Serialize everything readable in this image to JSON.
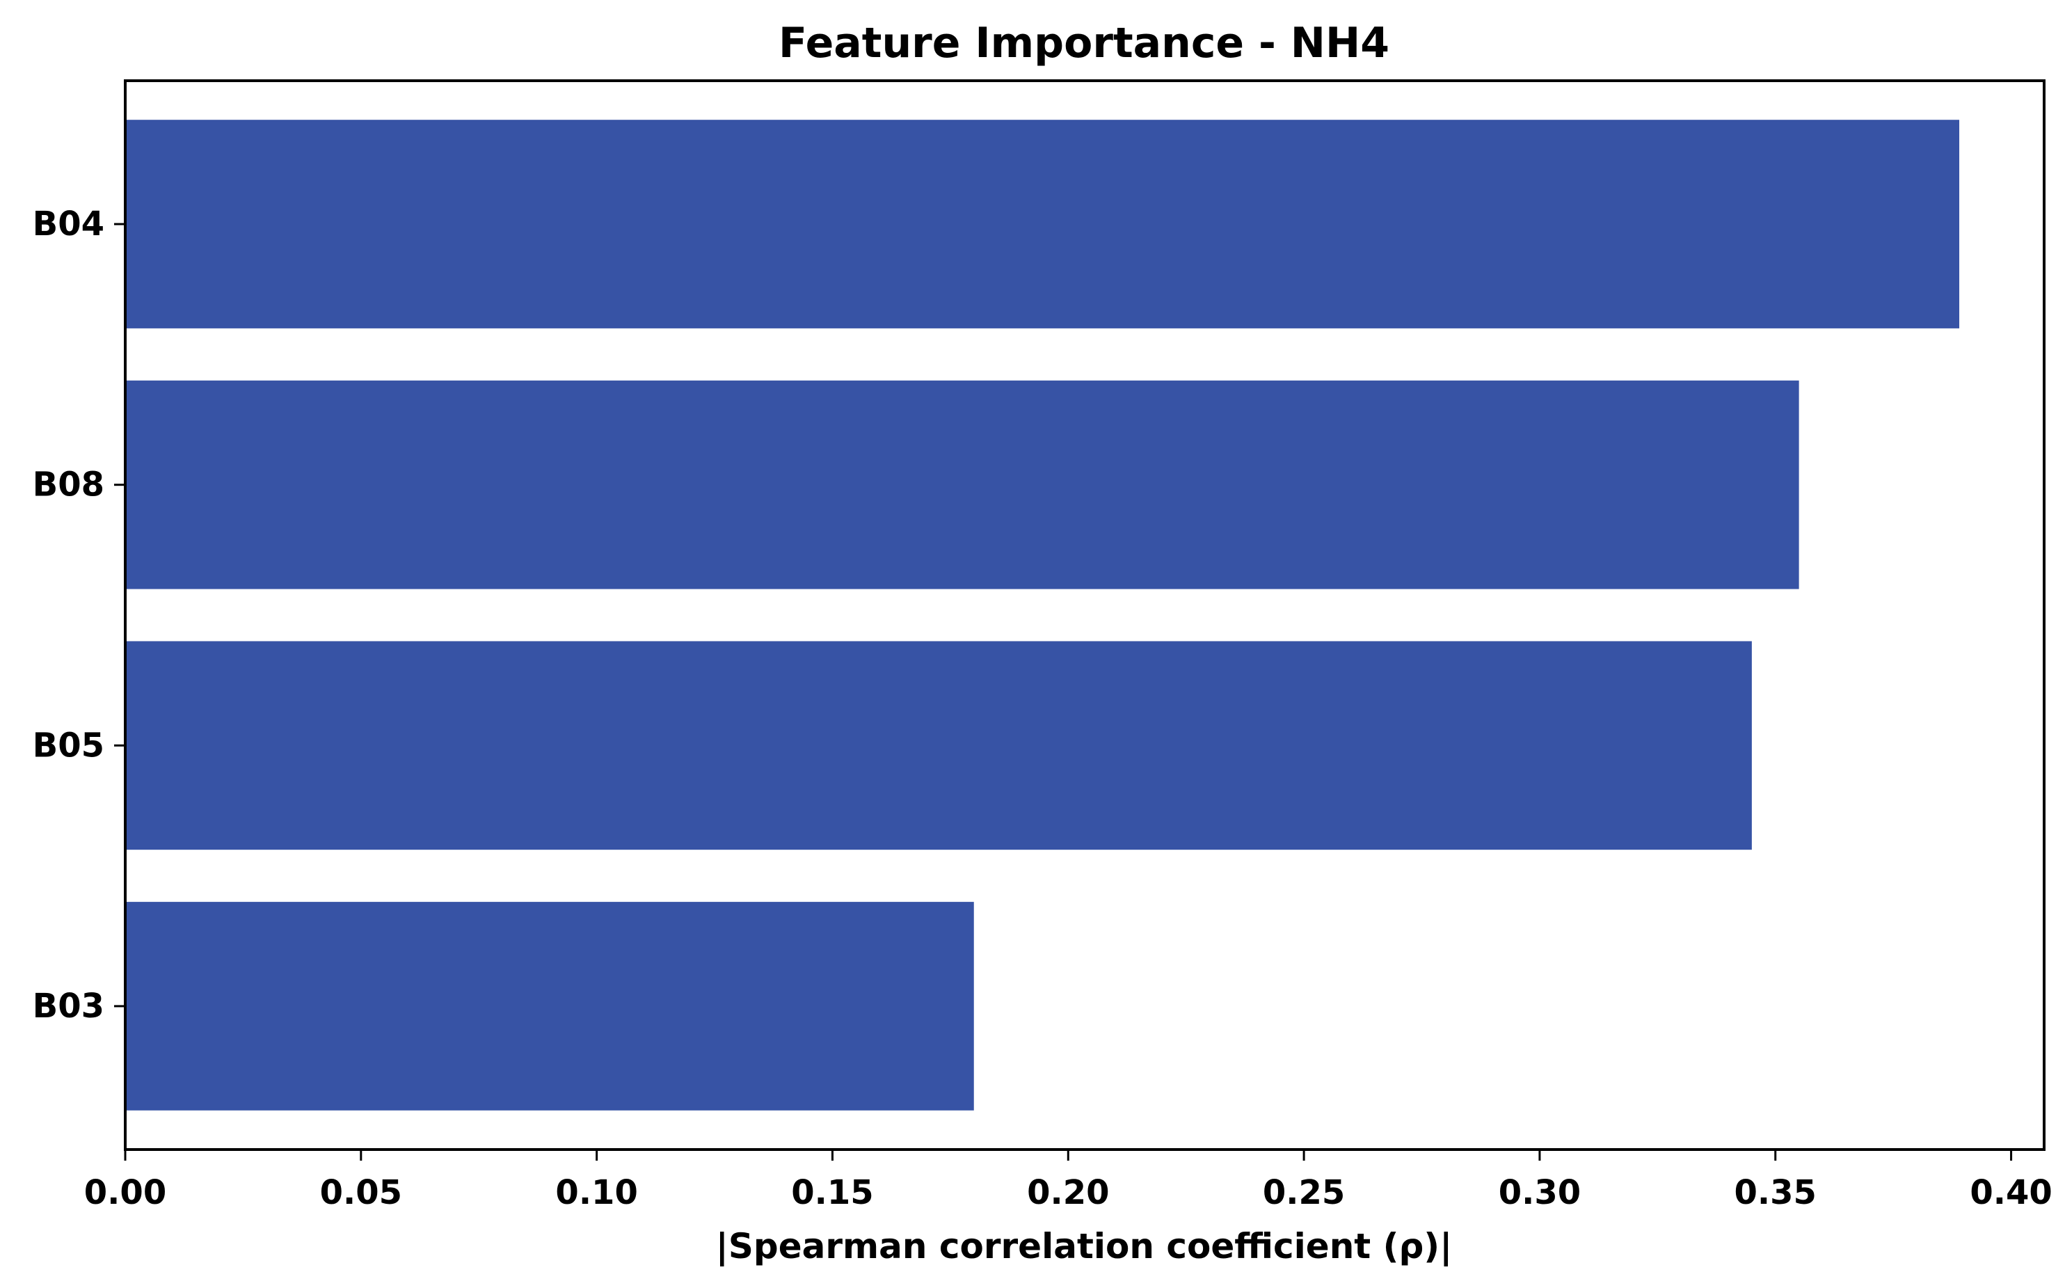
{
  "chart_data": {
    "type": "bar",
    "orientation": "horizontal",
    "title": "Feature Importance - NH4",
    "xlabel": "|Spearman correlation coefficient (ρ)|",
    "ylabel": "",
    "categories": [
      "B04",
      "B08",
      "B05",
      "B03"
    ],
    "values": [
      0.389,
      0.355,
      0.345,
      0.18
    ],
    "xlim": [
      0.0,
      0.407
    ],
    "xticks": [
      "0.00",
      "0.05",
      "0.10",
      "0.15",
      "0.20",
      "0.25",
      "0.30",
      "0.35",
      "0.40"
    ],
    "bar_color": "#3753a5",
    "grid": false,
    "legend": "none"
  }
}
